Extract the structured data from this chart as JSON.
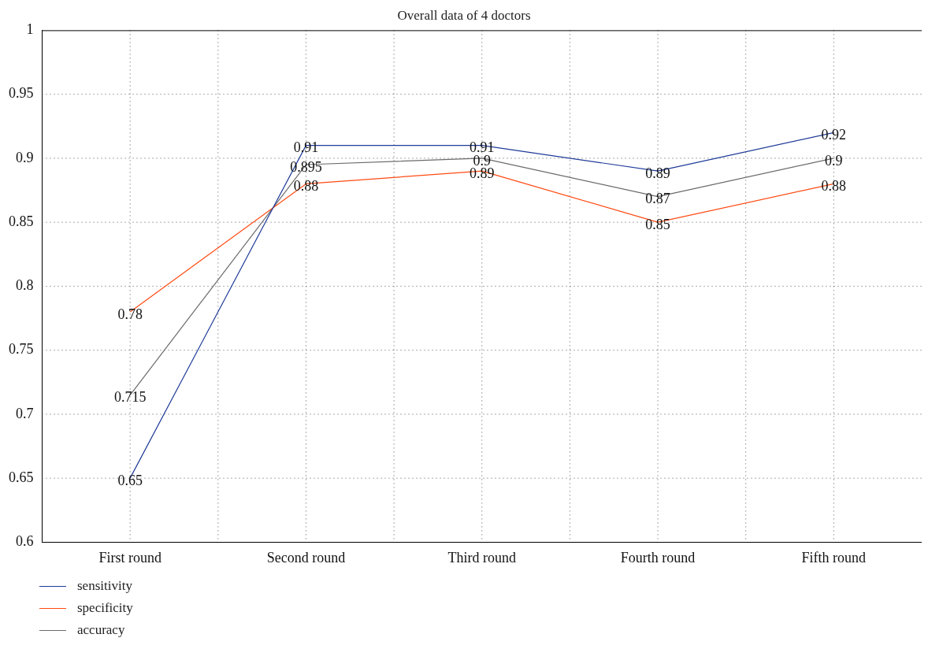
{
  "chart_data": {
    "type": "line",
    "title": "Overall data of 4 doctors",
    "categories": [
      "First round",
      "Second round",
      "Third round",
      "Fourth round",
      "Fifth round"
    ],
    "series": [
      {
        "name": "sensitivity",
        "color": "#1f3b99",
        "values": [
          0.65,
          0.91,
          0.91,
          0.89,
          0.92
        ]
      },
      {
        "name": "specificity",
        "color": "#ff4a12",
        "values": [
          0.78,
          0.88,
          0.89,
          0.85,
          0.88
        ]
      },
      {
        "name": "accuracy",
        "color": "#6b6b6b",
        "values": [
          0.715,
          0.895,
          0.9,
          0.87,
          0.9
        ]
      }
    ],
    "ylim": [
      0.6,
      1
    ],
    "yticks": [
      0.6,
      0.65,
      0.7,
      0.75,
      0.8,
      0.85,
      0.9,
      0.95,
      1
    ],
    "grid": true,
    "legend": "bottom left",
    "data_labels": true,
    "marker": "none",
    "line_style": "solid"
  }
}
